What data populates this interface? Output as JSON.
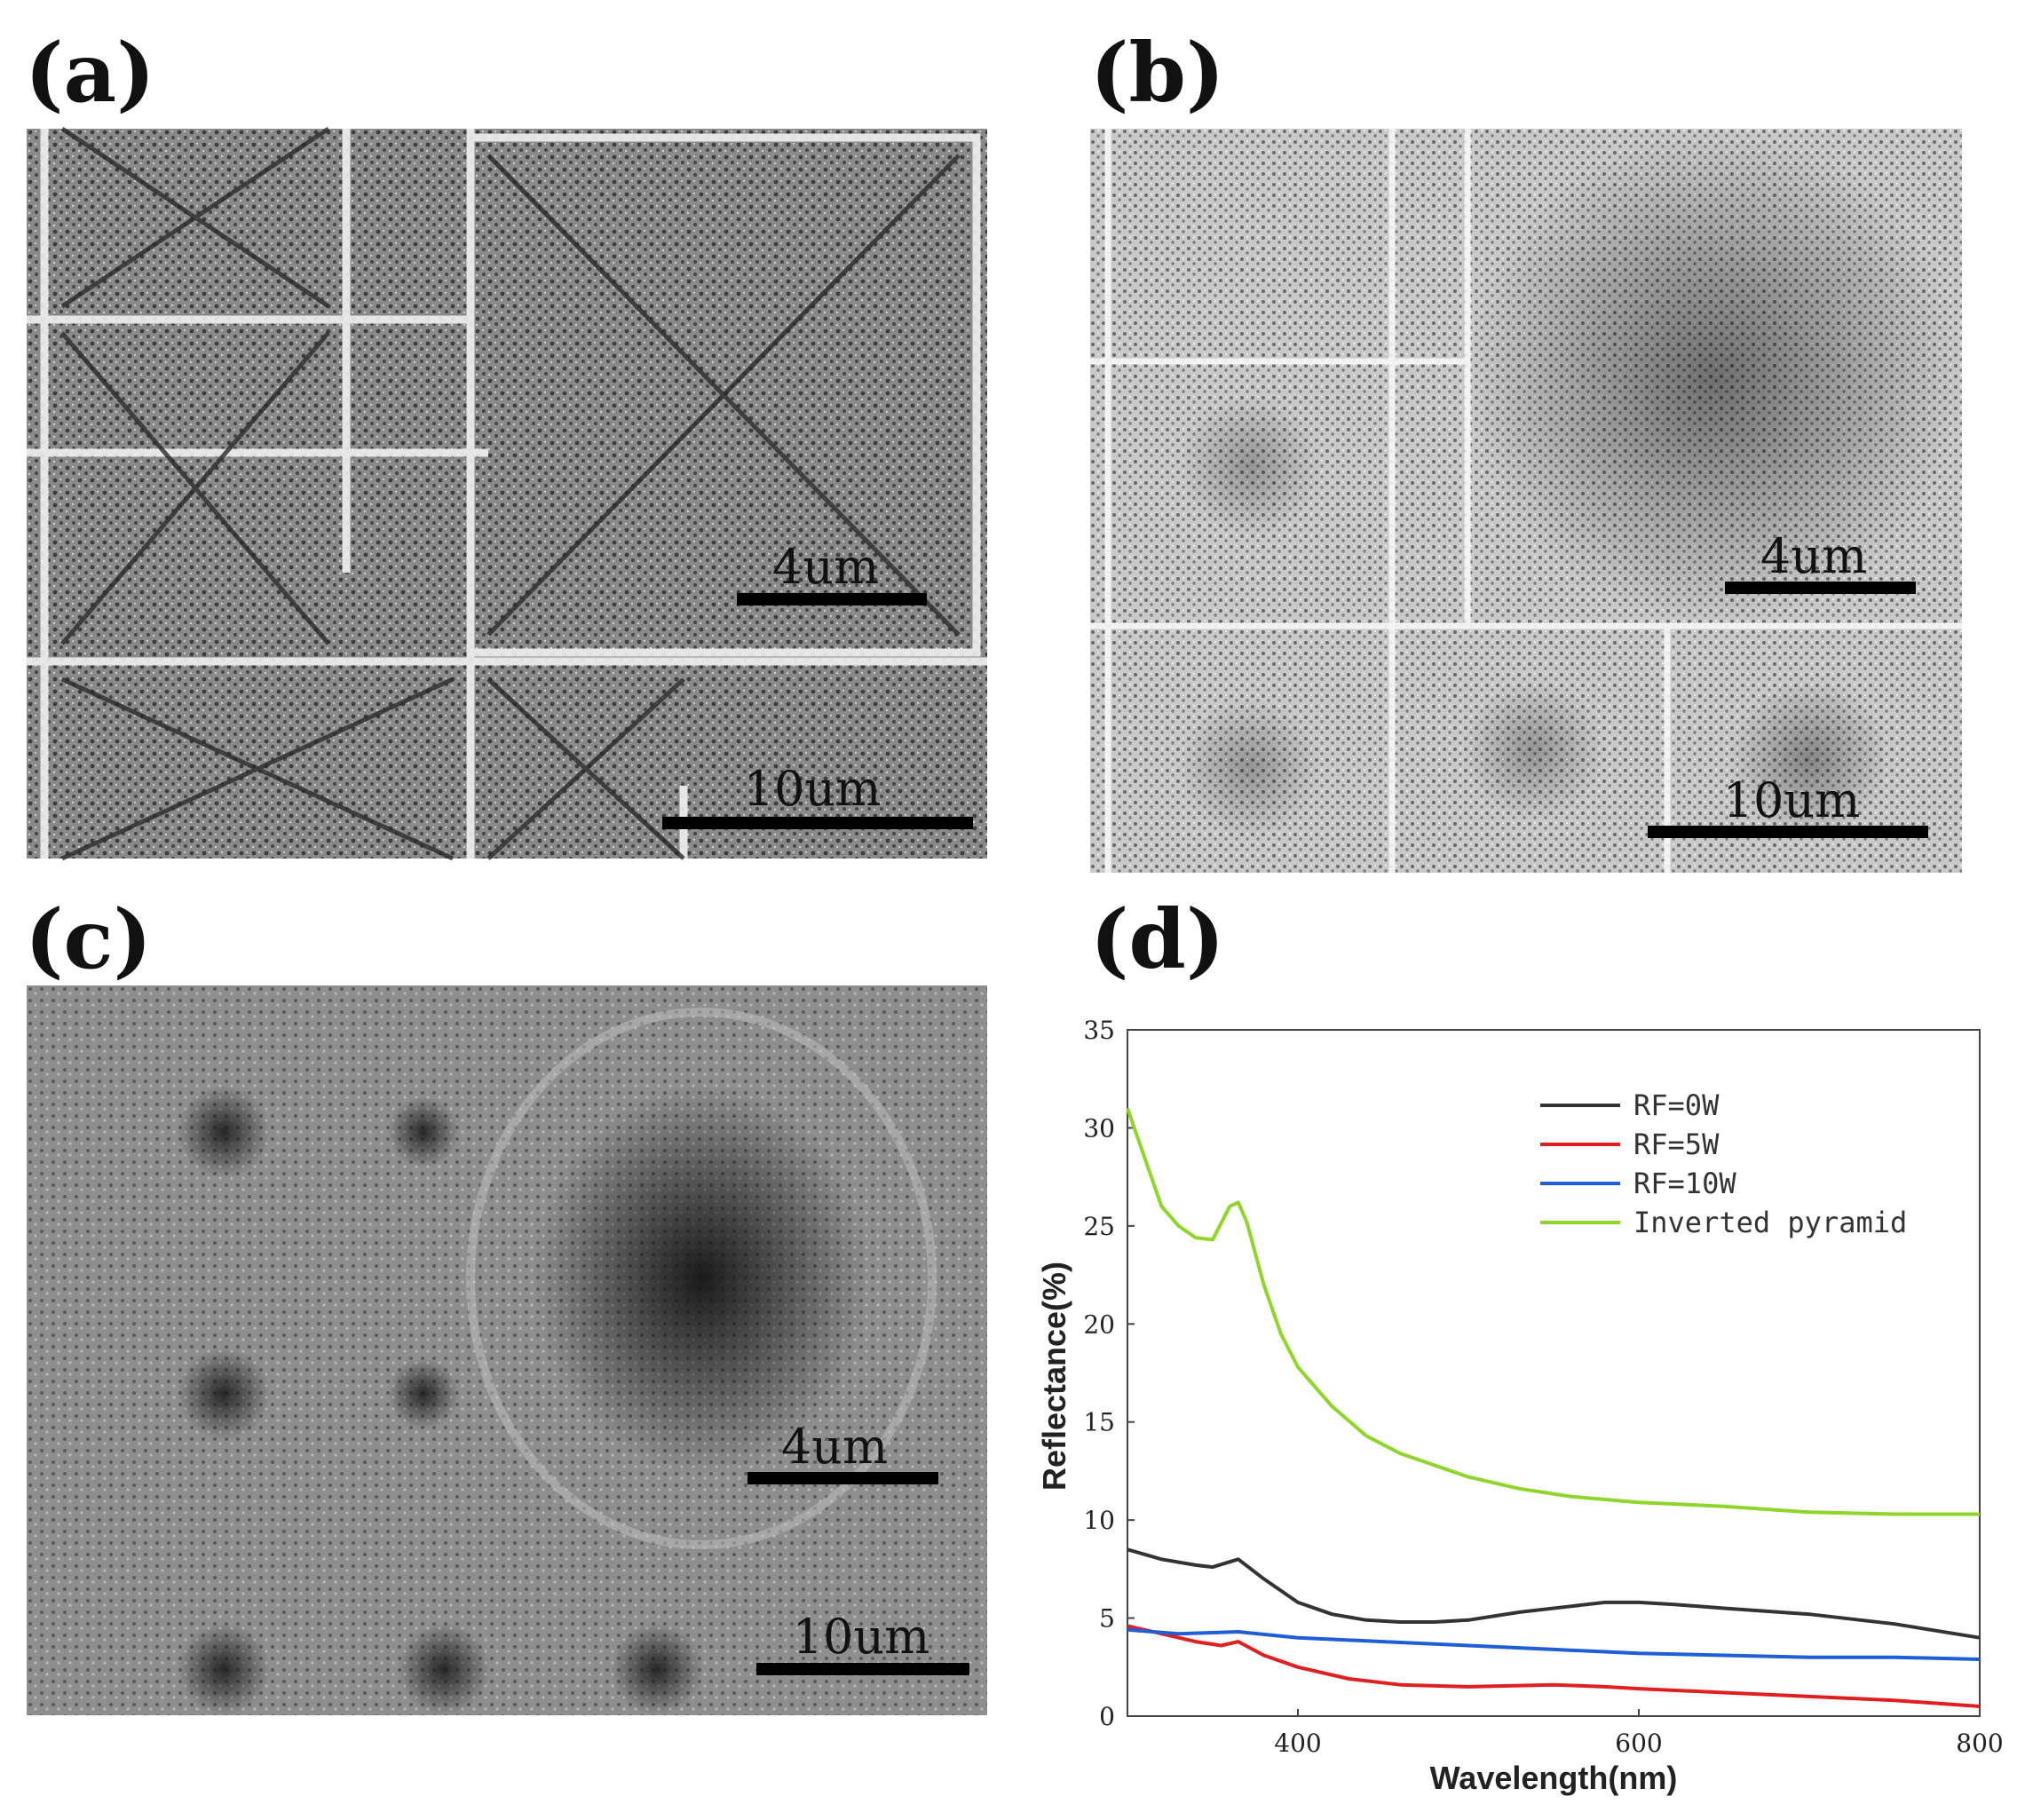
{
  "panels": {
    "a": {
      "label": "(a)",
      "scalebars": [
        "4um",
        "10um"
      ]
    },
    "b": {
      "label": "(b)",
      "scalebars": [
        "4um",
        "10um"
      ]
    },
    "c": {
      "label": "(c)",
      "scalebars": [
        "4um",
        "10um"
      ]
    },
    "d": {
      "label": "(d)"
    }
  },
  "chart_data": {
    "type": "line",
    "title": "",
    "xlabel": "Wavelength(nm)",
    "ylabel": "Reflectance(%)",
    "xlim": [
      300,
      800
    ],
    "ylim": [
      0,
      35
    ],
    "xticks": [
      400,
      600,
      800
    ],
    "yticks": [
      0,
      5,
      10,
      15,
      20,
      25,
      30,
      35
    ],
    "grid": false,
    "legend_position": "top-right",
    "series": [
      {
        "name": "RF=0W",
        "color": "#333333",
        "x": [
          300,
          320,
          340,
          350,
          365,
          380,
          400,
          420,
          440,
          460,
          480,
          500,
          530,
          560,
          580,
          600,
          620,
          650,
          700,
          750,
          800
        ],
        "y": [
          8.5,
          8.0,
          7.7,
          7.6,
          8.0,
          7.0,
          5.8,
          5.2,
          4.9,
          4.8,
          4.8,
          4.9,
          5.3,
          5.6,
          5.8,
          5.8,
          5.7,
          5.5,
          5.2,
          4.7,
          4.0
        ]
      },
      {
        "name": "RF=5W",
        "color": "#e02020",
        "x": [
          300,
          320,
          340,
          355,
          365,
          380,
          400,
          430,
          460,
          500,
          550,
          580,
          600,
          650,
          700,
          750,
          800
        ],
        "y": [
          4.6,
          4.2,
          3.8,
          3.6,
          3.8,
          3.1,
          2.5,
          1.9,
          1.6,
          1.5,
          1.6,
          1.5,
          1.4,
          1.2,
          1.0,
          0.8,
          0.5
        ]
      },
      {
        "name": "RF=10W",
        "color": "#1e5fd6",
        "x": [
          300,
          330,
          365,
          400,
          450,
          500,
          550,
          600,
          650,
          700,
          750,
          800
        ],
        "y": [
          4.4,
          4.2,
          4.3,
          4.0,
          3.8,
          3.6,
          3.4,
          3.2,
          3.1,
          3.0,
          3.0,
          2.9
        ]
      },
      {
        "name": "Inverted pyramid",
        "color": "#8ed62a",
        "x": [
          300,
          310,
          320,
          330,
          340,
          350,
          360,
          365,
          370,
          380,
          390,
          400,
          420,
          440,
          460,
          480,
          500,
          530,
          560,
          600,
          650,
          700,
          750,
          800
        ],
        "y": [
          31,
          28.5,
          26,
          25,
          24.4,
          24.3,
          26,
          26.2,
          25.2,
          22,
          19.5,
          17.8,
          15.8,
          14.3,
          13.4,
          12.8,
          12.2,
          11.6,
          11.2,
          10.9,
          10.7,
          10.4,
          10.3,
          10.3
        ]
      }
    ]
  }
}
